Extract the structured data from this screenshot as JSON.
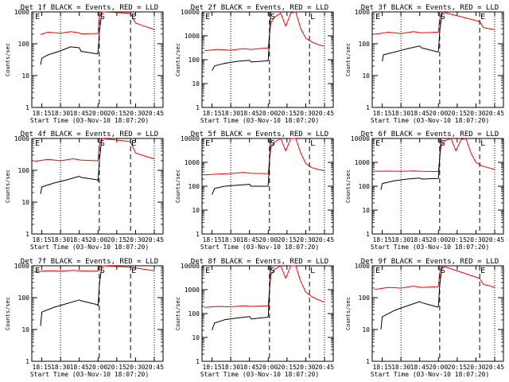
{
  "figure": {
    "xlabel": "Start Time (03-Nov-10 18:07:20)",
    "ylabel": "Counts/sec",
    "x_tick_labels": [
      "18:15",
      "18:30",
      "18:45",
      "20:00",
      "20:15",
      "20:30",
      "20:45"
    ],
    "marker_labels": [
      "E",
      "S",
      "E",
      "L"
    ],
    "colors": {
      "events": "#000000",
      "lld": "#ff0000"
    }
  },
  "chart_data": [
    {
      "type": "line",
      "title": "Det 1f BLACK = Events, RED = LLD",
      "ymax": 1000,
      "y_tick_labels": [
        "1",
        "10",
        "100",
        "1000"
      ],
      "markers": [
        {
          "label": "E",
          "x": "18:09"
        },
        {
          "label": "S",
          "x": "20:01"
        },
        {
          "label": "E",
          "x": "20:26"
        }
      ],
      "series": [
        {
          "x": [
            "18:14",
            "18:20",
            "18:30",
            "18:38",
            "18:45",
            "18:52",
            "19:58",
            "20:00",
            "20:01",
            "20:03",
            "20:05",
            "20:26",
            "20:30",
            "20:35",
            "20:40",
            "20:45"
          ],
          "values": [
            195,
            230,
            215,
            240,
            220,
            205,
            210,
            230,
            700,
            1000,
            1000,
            900,
            450,
            380,
            330,
            280
          ]
        },
        {
          "x": [
            "18:14",
            "18:15",
            "18:20",
            "18:30",
            "18:38",
            "18:45",
            "18:52",
            "19:58",
            "20:00",
            "20:01",
            "20:03"
          ],
          "values": [
            22,
            35,
            45,
            60,
            80,
            75,
            58,
            48,
            55,
            220,
            1000
          ]
        }
      ]
    },
    {
      "type": "line",
      "title": "Det 2f BLACK = Events, RED = LLD",
      "ymax": 10000,
      "y_tick_labels": [
        "1",
        "10",
        "100",
        "1000",
        "10000"
      ],
      "markers": [
        {
          "label": "E",
          "x": "18:09"
        },
        {
          "label": "S",
          "x": "20:01"
        },
        {
          "label": "L",
          "x": "20:33"
        }
      ],
      "series": [
        {
          "x": [
            "18:09",
            "18:20",
            "18:30",
            "18:40",
            "18:50",
            "19:58",
            "20:00",
            "20:02",
            "20:05",
            "20:10",
            "20:14",
            "20:18",
            "20:22",
            "20:26",
            "20:30",
            "20:35",
            "20:40",
            "20:45"
          ],
          "values": [
            240,
            270,
            250,
            290,
            270,
            310,
            330,
            3500,
            6000,
            9000,
            2500,
            9000,
            10000,
            2000,
            800,
            550,
            430,
            360
          ]
        },
        {
          "x": [
            "18:15",
            "18:17",
            "18:25",
            "18:35",
            "18:45",
            "18:52",
            "19:58",
            "20:00",
            "20:02"
          ],
          "values": [
            35,
            55,
            70,
            85,
            95,
            80,
            90,
            100,
            10000
          ]
        }
      ]
    },
    {
      "type": "line",
      "title": "Det 3f BLACK = Events, RED = LLD",
      "ymax": 1000,
      "y_tick_labels": [
        "1",
        "10",
        "100",
        "1000"
      ],
      "markers": [
        {
          "label": "E",
          "x": "18:09"
        },
        {
          "label": "S",
          "x": "20:01"
        },
        {
          "label": "E",
          "x": "20:33"
        }
      ],
      "series": [
        {
          "x": [
            "18:09",
            "18:20",
            "18:30",
            "18:40",
            "18:50",
            "19:58",
            "20:00",
            "20:01",
            "20:03",
            "20:33",
            "20:36",
            "20:40",
            "20:45"
          ],
          "values": [
            200,
            230,
            210,
            240,
            220,
            230,
            250,
            600,
            1000,
            500,
            320,
            300,
            280
          ]
        },
        {
          "x": [
            "18:15",
            "18:16",
            "18:25",
            "18:35",
            "18:45",
            "18:52",
            "19:58",
            "20:00",
            "20:01",
            "20:03"
          ],
          "values": [
            28,
            45,
            55,
            70,
            85,
            75,
            55,
            60,
            250,
            1000
          ]
        }
      ]
    },
    {
      "type": "line",
      "title": "Det 4f BLACK = Events, RED = LLD",
      "ymax": 1000,
      "y_tick_labels": [
        "1",
        "10",
        "100",
        "1000"
      ],
      "markers": [
        {
          "label": "E",
          "x": "18:09"
        },
        {
          "label": "S",
          "x": "20:01"
        },
        {
          "label": "E",
          "x": "20:26"
        }
      ],
      "series": [
        {
          "x": [
            "18:09",
            "18:20",
            "18:30",
            "18:40",
            "18:50",
            "19:58",
            "20:00",
            "20:01",
            "20:03",
            "20:26",
            "20:30",
            "20:35",
            "20:40",
            "20:45"
          ],
          "values": [
            190,
            220,
            200,
            230,
            210,
            200,
            220,
            600,
            1000,
            800,
            350,
            300,
            260,
            230
          ]
        },
        {
          "x": [
            "18:14",
            "18:15",
            "18:25",
            "18:35",
            "18:45",
            "18:52",
            "19:58",
            "20:00",
            "20:01",
            "20:03"
          ],
          "values": [
            18,
            30,
            40,
            50,
            65,
            60,
            50,
            45,
            200,
            1000
          ]
        }
      ]
    },
    {
      "type": "line",
      "title": "Det 5f BLACK = Events, RED = LLD",
      "ymax": 10000,
      "y_tick_labels": [
        "1",
        "10",
        "100",
        "1000",
        "10000"
      ],
      "markers": [
        {
          "label": "E",
          "x": "18:09"
        },
        {
          "label": "S",
          "x": "20:01"
        },
        {
          "label": "L",
          "x": "20:33"
        }
      ],
      "series": [
        {
          "x": [
            "18:09",
            "18:20",
            "18:30",
            "18:40",
            "18:50",
            "19:58",
            "20:00",
            "20:02",
            "20:05",
            "20:10",
            "20:14",
            "20:18",
            "20:22",
            "20:26",
            "20:30",
            "20:35",
            "20:40",
            "20:45"
          ],
          "values": [
            300,
            320,
            340,
            380,
            350,
            340,
            360,
            4000,
            7000,
            10000,
            3000,
            10000,
            10000,
            2500,
            900,
            600,
            500,
            450
          ]
        },
        {
          "x": [
            "18:15",
            "18:17",
            "18:25",
            "18:35",
            "18:45",
            "18:52",
            "19:58",
            "20:00",
            "20:02"
          ],
          "values": [
            45,
            80,
            100,
            110,
            120,
            100,
            100,
            110,
            10000
          ]
        }
      ]
    },
    {
      "type": "line",
      "title": "Det 6f BLACK = Events, RED = LLD",
      "ymax": 10000,
      "y_tick_labels": [
        "1",
        "10",
        "100",
        "1000",
        "10000"
      ],
      "markers": [
        {
          "label": "E",
          "x": "18:09"
        },
        {
          "label": "S",
          "x": "20:01"
        },
        {
          "label": "L",
          "x": "20:33"
        }
      ],
      "series": [
        {
          "x": [
            "18:09",
            "18:20",
            "18:30",
            "18:40",
            "18:50",
            "19:58",
            "20:00",
            "20:02",
            "20:05",
            "20:10",
            "20:14",
            "20:18",
            "20:22",
            "20:26",
            "20:30",
            "20:35",
            "20:40",
            "20:45"
          ],
          "values": [
            420,
            430,
            420,
            440,
            420,
            410,
            420,
            5000,
            8000,
            10000,
            3000,
            9000,
            10000,
            2500,
            1000,
            700,
            600,
            500
          ]
        },
        {
          "x": [
            "18:14",
            "18:15",
            "18:25",
            "18:35",
            "18:45",
            "18:52",
            "19:58",
            "20:00",
            "20:02"
          ],
          "values": [
            70,
            130,
            170,
            200,
            220,
            200,
            210,
            220,
            10000
          ]
        }
      ]
    },
    {
      "type": "line",
      "title": "Det 7f BLACK = Events, RED = LLD",
      "ymax": 1000,
      "y_tick_labels": [
        "1",
        "10",
        "100",
        "1000"
      ],
      "markers": [
        {
          "label": "E",
          "x": "18:09"
        },
        {
          "label": "S",
          "x": "20:01"
        },
        {
          "label": "E",
          "x": "20:26"
        }
      ],
      "series": [
        {
          "x": [
            "18:09",
            "18:20",
            "18:30",
            "18:40",
            "18:50",
            "19:58",
            "20:00",
            "20:01",
            "20:03",
            "20:26",
            "20:30",
            "20:35",
            "20:40",
            "20:45"
          ],
          "values": [
            650,
            700,
            680,
            720,
            690,
            680,
            700,
            900,
            1000,
            900,
            850,
            800,
            750,
            700
          ]
        },
        {
          "x": [
            "18:14",
            "18:15",
            "18:25",
            "18:35",
            "18:45",
            "18:52",
            "19:58",
            "20:00",
            "20:01",
            "20:03"
          ],
          "values": [
            13,
            35,
            50,
            65,
            85,
            80,
            60,
            55,
            250,
            1000
          ]
        }
      ]
    },
    {
      "type": "line",
      "title": "Det 8f BLACK = Events, RED = LLD",
      "ymax": 10000,
      "y_tick_labels": [
        "1",
        "10",
        "100",
        "1000",
        "10000"
      ],
      "markers": [
        {
          "label": "E",
          "x": "18:09"
        },
        {
          "label": "S",
          "x": "20:01"
        },
        {
          "label": "L",
          "x": "20:33"
        }
      ],
      "series": [
        {
          "x": [
            "18:09",
            "18:20",
            "18:30",
            "18:40",
            "18:50",
            "19:58",
            "20:00",
            "20:02",
            "20:05",
            "20:10",
            "20:14",
            "20:18",
            "20:22",
            "20:26",
            "20:30",
            "20:35",
            "20:40",
            "20:45"
          ],
          "values": [
            180,
            200,
            190,
            210,
            200,
            210,
            220,
            4000,
            7000,
            10000,
            3000,
            10000,
            10000,
            2200,
            800,
            500,
            380,
            300
          ]
        },
        {
          "x": [
            "18:15",
            "18:17",
            "18:25",
            "18:35",
            "18:45",
            "18:52",
            "19:58",
            "20:00",
            "20:02"
          ],
          "values": [
            20,
            40,
            55,
            65,
            75,
            60,
            70,
            75,
            10000
          ]
        }
      ]
    },
    {
      "type": "line",
      "title": "Det 9f BLACK = Events, RED = LLD",
      "ymax": 1000,
      "y_tick_labels": [
        "1",
        "10",
        "100",
        "1000"
      ],
      "markers": [
        {
          "label": "E",
          "x": "18:09"
        },
        {
          "label": "S",
          "x": "20:01"
        },
        {
          "label": "E",
          "x": "20:33"
        }
      ],
      "series": [
        {
          "x": [
            "18:09",
            "18:20",
            "18:30",
            "18:40",
            "18:50",
            "19:58",
            "20:00",
            "20:01",
            "20:03",
            "20:33",
            "20:36",
            "20:40",
            "20:45"
          ],
          "values": [
            180,
            210,
            200,
            230,
            210,
            220,
            240,
            600,
            1000,
            400,
            260,
            240,
            210
          ]
        },
        {
          "x": [
            "18:14",
            "18:15",
            "18:25",
            "18:35",
            "18:45",
            "18:52",
            "19:58",
            "20:00",
            "20:01",
            "20:03"
          ],
          "values": [
            10,
            25,
            40,
            55,
            75,
            70,
            50,
            55,
            250,
            1000
          ]
        }
      ]
    }
  ]
}
